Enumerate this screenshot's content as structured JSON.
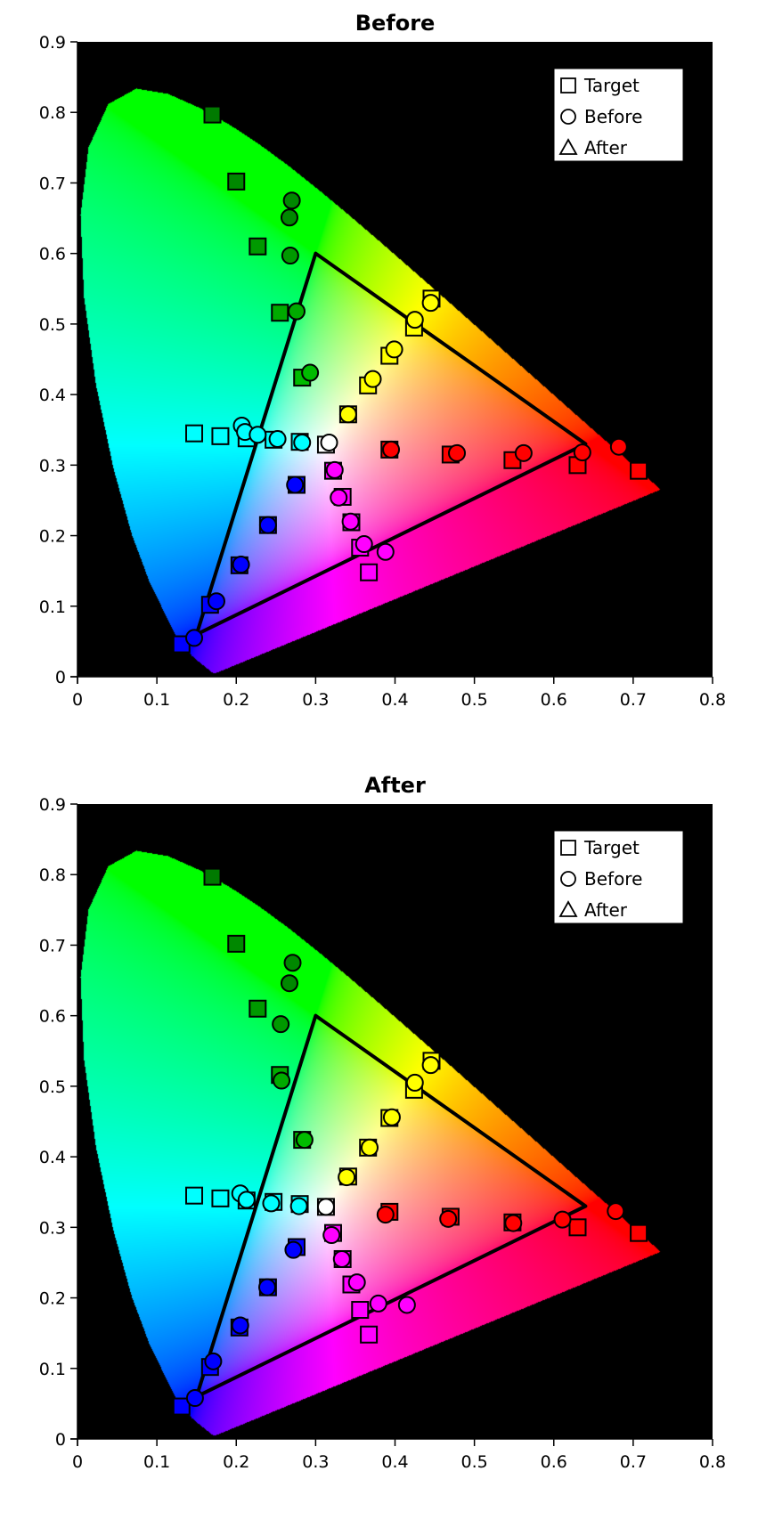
{
  "chart_data": [
    {
      "type": "scatter",
      "title": "Before",
      "xlabel": "",
      "ylabel": "",
      "xlim": [
        0,
        0.8
      ],
      "ylim": [
        0,
        0.9
      ],
      "xticks": [
        "0",
        "0.1",
        "0.2",
        "0.3",
        "0.4",
        "0.5",
        "0.6",
        "0.7",
        "0.8"
      ],
      "yticks": [
        "0",
        "0.1",
        "0.2",
        "0.3",
        "0.4",
        "0.5",
        "0.6",
        "0.7",
        "0.8",
        "0.9"
      ],
      "background": "CIE 1931 chromaticity diagram",
      "plot_bg": "#000000",
      "legend": {
        "position": "top-right",
        "entries": [
          {
            "marker": "square",
            "label": "Target"
          },
          {
            "marker": "circle",
            "label": "Before"
          },
          {
            "marker": "triangle",
            "label": "After"
          }
        ]
      },
      "gamut_triangle": [
        [
          0.64,
          0.33
        ],
        [
          0.3,
          0.6
        ],
        [
          0.15,
          0.06
        ]
      ],
      "series": [
        {
          "name": "Target",
          "marker": "square",
          "points": [
            {
              "x": 0.17,
              "y": 0.797,
              "color": "#007a00"
            },
            {
              "x": 0.2,
              "y": 0.702,
              "color": "#008800"
            },
            {
              "x": 0.227,
              "y": 0.61,
              "color": "#009900"
            },
            {
              "x": 0.255,
              "y": 0.516,
              "color": "#00aa00"
            },
            {
              "x": 0.283,
              "y": 0.424,
              "color": "#00bb00"
            },
            {
              "x": 0.446,
              "y": 0.536,
              "color": "#ffff00"
            },
            {
              "x": 0.424,
              "y": 0.495,
              "color": "#ffff00"
            },
            {
              "x": 0.393,
              "y": 0.455,
              "color": "#ffff00"
            },
            {
              "x": 0.366,
              "y": 0.413,
              "color": "#ffff00"
            },
            {
              "x": 0.341,
              "y": 0.372,
              "color": "#ffff00"
            },
            {
              "x": 0.707,
              "y": 0.292,
              "color": "#ff0000"
            },
            {
              "x": 0.63,
              "y": 0.3,
              "color": "#ff0000"
            },
            {
              "x": 0.548,
              "y": 0.307,
              "color": "#ff0000"
            },
            {
              "x": 0.47,
              "y": 0.315,
              "color": "#ff0000"
            },
            {
              "x": 0.393,
              "y": 0.322,
              "color": "#ff0000"
            },
            {
              "x": 0.367,
              "y": 0.148,
              "color": "#ff00ff"
            },
            {
              "x": 0.356,
              "y": 0.183,
              "color": "#ff00ff"
            },
            {
              "x": 0.345,
              "y": 0.219,
              "color": "#ff00ff"
            },
            {
              "x": 0.334,
              "y": 0.255,
              "color": "#ff00ff"
            },
            {
              "x": 0.322,
              "y": 0.292,
              "color": "#ff00ff"
            },
            {
              "x": 0.131,
              "y": 0.046,
              "color": "#0000ff"
            },
            {
              "x": 0.167,
              "y": 0.102,
              "color": "#0000ff"
            },
            {
              "x": 0.204,
              "y": 0.158,
              "color": "#0000ff"
            },
            {
              "x": 0.24,
              "y": 0.215,
              "color": "#0000ff"
            },
            {
              "x": 0.276,
              "y": 0.272,
              "color": "#0000ff"
            },
            {
              "x": 0.147,
              "y": 0.345,
              "color": "#00ffff"
            },
            {
              "x": 0.18,
              "y": 0.341,
              "color": "#00ffff"
            },
            {
              "x": 0.213,
              "y": 0.338,
              "color": "#00ffff"
            },
            {
              "x": 0.247,
              "y": 0.336,
              "color": "#00ffff"
            },
            {
              "x": 0.28,
              "y": 0.333,
              "color": "#00ffff"
            },
            {
              "x": 0.313,
              "y": 0.329,
              "color": "#ffffff"
            }
          ]
        },
        {
          "name": "Before",
          "marker": "circle",
          "points": [
            {
              "x": 0.27,
              "y": 0.675,
              "color": "#008800"
            },
            {
              "x": 0.267,
              "y": 0.651,
              "color": "#008800"
            },
            {
              "x": 0.268,
              "y": 0.597,
              "color": "#009900"
            },
            {
              "x": 0.276,
              "y": 0.518,
              "color": "#00aa00"
            },
            {
              "x": 0.293,
              "y": 0.431,
              "color": "#00bb00"
            },
            {
              "x": 0.445,
              "y": 0.53,
              "color": "#ffff00"
            },
            {
              "x": 0.425,
              "y": 0.506,
              "color": "#ffff00"
            },
            {
              "x": 0.399,
              "y": 0.464,
              "color": "#ffff00"
            },
            {
              "x": 0.372,
              "y": 0.422,
              "color": "#ffff00"
            },
            {
              "x": 0.341,
              "y": 0.372,
              "color": "#ffff00"
            },
            {
              "x": 0.682,
              "y": 0.326,
              "color": "#ff0000"
            },
            {
              "x": 0.636,
              "y": 0.318,
              "color": "#ff0000"
            },
            {
              "x": 0.562,
              "y": 0.317,
              "color": "#ff0000"
            },
            {
              "x": 0.478,
              "y": 0.317,
              "color": "#ff0000"
            },
            {
              "x": 0.395,
              "y": 0.322,
              "color": "#ff0000"
            },
            {
              "x": 0.388,
              "y": 0.177,
              "color": "#ff00ff"
            },
            {
              "x": 0.361,
              "y": 0.188,
              "color": "#ff00ff"
            },
            {
              "x": 0.344,
              "y": 0.22,
              "color": "#ff00ff"
            },
            {
              "x": 0.329,
              "y": 0.254,
              "color": "#ff00ff"
            },
            {
              "x": 0.324,
              "y": 0.293,
              "color": "#ff00ff"
            },
            {
              "x": 0.147,
              "y": 0.055,
              "color": "#0000ff"
            },
            {
              "x": 0.175,
              "y": 0.107,
              "color": "#0000ff"
            },
            {
              "x": 0.206,
              "y": 0.159,
              "color": "#0000ff"
            },
            {
              "x": 0.24,
              "y": 0.215,
              "color": "#0000ff"
            },
            {
              "x": 0.274,
              "y": 0.272,
              "color": "#0000ff"
            },
            {
              "x": 0.207,
              "y": 0.356,
              "color": "#00ffff"
            },
            {
              "x": 0.211,
              "y": 0.347,
              "color": "#00ffff"
            },
            {
              "x": 0.227,
              "y": 0.343,
              "color": "#00ffff"
            },
            {
              "x": 0.252,
              "y": 0.337,
              "color": "#00ffff"
            },
            {
              "x": 0.283,
              "y": 0.332,
              "color": "#00ffff"
            },
            {
              "x": 0.317,
              "y": 0.332,
              "color": "#ffffff"
            }
          ]
        }
      ]
    },
    {
      "type": "scatter",
      "title": "After",
      "xlabel": "",
      "ylabel": "",
      "xlim": [
        0,
        0.8
      ],
      "ylim": [
        0,
        0.9
      ],
      "xticks": [
        "0",
        "0.1",
        "0.2",
        "0.3",
        "0.4",
        "0.5",
        "0.6",
        "0.7",
        "0.8"
      ],
      "yticks": [
        "0",
        "0.1",
        "0.2",
        "0.3",
        "0.4",
        "0.5",
        "0.6",
        "0.7",
        "0.8",
        "0.9"
      ],
      "background": "CIE 1931 chromaticity diagram",
      "plot_bg": "#000000",
      "legend": {
        "position": "top-right",
        "entries": [
          {
            "marker": "square",
            "label": "Target"
          },
          {
            "marker": "circle",
            "label": "Before"
          },
          {
            "marker": "triangle",
            "label": "After"
          }
        ]
      },
      "gamut_triangle": [
        [
          0.64,
          0.33
        ],
        [
          0.3,
          0.6
        ],
        [
          0.15,
          0.06
        ]
      ],
      "series": [
        {
          "name": "Target",
          "marker": "square",
          "points": [
            {
              "x": 0.17,
              "y": 0.797,
              "color": "#007a00"
            },
            {
              "x": 0.2,
              "y": 0.702,
              "color": "#008800"
            },
            {
              "x": 0.227,
              "y": 0.61,
              "color": "#009900"
            },
            {
              "x": 0.255,
              "y": 0.516,
              "color": "#00aa00"
            },
            {
              "x": 0.283,
              "y": 0.424,
              "color": "#00bb00"
            },
            {
              "x": 0.446,
              "y": 0.536,
              "color": "#ffff00"
            },
            {
              "x": 0.424,
              "y": 0.495,
              "color": "#ffff00"
            },
            {
              "x": 0.393,
              "y": 0.455,
              "color": "#ffff00"
            },
            {
              "x": 0.366,
              "y": 0.413,
              "color": "#ffff00"
            },
            {
              "x": 0.341,
              "y": 0.372,
              "color": "#ffff00"
            },
            {
              "x": 0.707,
              "y": 0.292,
              "color": "#ff0000"
            },
            {
              "x": 0.63,
              "y": 0.3,
              "color": "#ff0000"
            },
            {
              "x": 0.548,
              "y": 0.307,
              "color": "#ff0000"
            },
            {
              "x": 0.47,
              "y": 0.315,
              "color": "#ff0000"
            },
            {
              "x": 0.393,
              "y": 0.322,
              "color": "#ff0000"
            },
            {
              "x": 0.367,
              "y": 0.148,
              "color": "#ff00ff"
            },
            {
              "x": 0.356,
              "y": 0.183,
              "color": "#ff00ff"
            },
            {
              "x": 0.345,
              "y": 0.219,
              "color": "#ff00ff"
            },
            {
              "x": 0.334,
              "y": 0.255,
              "color": "#ff00ff"
            },
            {
              "x": 0.322,
              "y": 0.292,
              "color": "#ff00ff"
            },
            {
              "x": 0.131,
              "y": 0.046,
              "color": "#0000ff"
            },
            {
              "x": 0.167,
              "y": 0.102,
              "color": "#0000ff"
            },
            {
              "x": 0.204,
              "y": 0.158,
              "color": "#0000ff"
            },
            {
              "x": 0.24,
              "y": 0.215,
              "color": "#0000ff"
            },
            {
              "x": 0.276,
              "y": 0.272,
              "color": "#0000ff"
            },
            {
              "x": 0.147,
              "y": 0.345,
              "color": "#00ffff"
            },
            {
              "x": 0.18,
              "y": 0.341,
              "color": "#00ffff"
            },
            {
              "x": 0.213,
              "y": 0.338,
              "color": "#00ffff"
            },
            {
              "x": 0.247,
              "y": 0.336,
              "color": "#00ffff"
            },
            {
              "x": 0.28,
              "y": 0.333,
              "color": "#00ffff"
            },
            {
              "x": 0.313,
              "y": 0.329,
              "color": "#ffffff"
            }
          ]
        },
        {
          "name": "Before",
          "marker": "circle",
          "points": [
            {
              "x": 0.271,
              "y": 0.675,
              "color": "#008800"
            },
            {
              "x": 0.267,
              "y": 0.646,
              "color": "#008800"
            },
            {
              "x": 0.256,
              "y": 0.588,
              "color": "#009900"
            },
            {
              "x": 0.257,
              "y": 0.508,
              "color": "#00aa00"
            },
            {
              "x": 0.286,
              "y": 0.424,
              "color": "#00bb00"
            },
            {
              "x": 0.445,
              "y": 0.53,
              "color": "#ffff00"
            },
            {
              "x": 0.425,
              "y": 0.505,
              "color": "#ffff00"
            },
            {
              "x": 0.396,
              "y": 0.456,
              "color": "#ffff00"
            },
            {
              "x": 0.368,
              "y": 0.413,
              "color": "#ffff00"
            },
            {
              "x": 0.339,
              "y": 0.371,
              "color": "#ffff00"
            },
            {
              "x": 0.678,
              "y": 0.323,
              "color": "#ff0000"
            },
            {
              "x": 0.611,
              "y": 0.311,
              "color": "#ff0000"
            },
            {
              "x": 0.549,
              "y": 0.306,
              "color": "#ff0000"
            },
            {
              "x": 0.467,
              "y": 0.312,
              "color": "#ff0000"
            },
            {
              "x": 0.388,
              "y": 0.318,
              "color": "#ff0000"
            },
            {
              "x": 0.415,
              "y": 0.19,
              "color": "#ff00ff"
            },
            {
              "x": 0.379,
              "y": 0.192,
              "color": "#ff00ff"
            },
            {
              "x": 0.352,
              "y": 0.222,
              "color": "#ff00ff"
            },
            {
              "x": 0.333,
              "y": 0.255,
              "color": "#ff00ff"
            },
            {
              "x": 0.32,
              "y": 0.289,
              "color": "#ff00ff"
            },
            {
              "x": 0.148,
              "y": 0.058,
              "color": "#0000ff"
            },
            {
              "x": 0.171,
              "y": 0.11,
              "color": "#0000ff"
            },
            {
              "x": 0.205,
              "y": 0.161,
              "color": "#0000ff"
            },
            {
              "x": 0.239,
              "y": 0.215,
              "color": "#0000ff"
            },
            {
              "x": 0.272,
              "y": 0.268,
              "color": "#0000ff"
            },
            {
              "x": 0.205,
              "y": 0.348,
              "color": "#00ffff"
            },
            {
              "x": 0.213,
              "y": 0.339,
              "color": "#00ffff"
            },
            {
              "x": 0.244,
              "y": 0.334,
              "color": "#00ffff"
            },
            {
              "x": 0.279,
              "y": 0.33,
              "color": "#00ffff"
            },
            {
              "x": 0.313,
              "y": 0.329,
              "color": "#ffffff"
            }
          ]
        }
      ]
    }
  ]
}
